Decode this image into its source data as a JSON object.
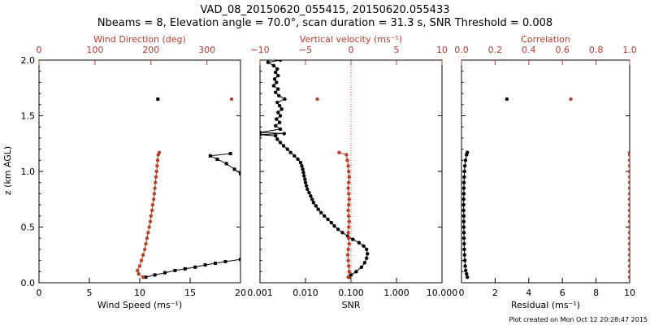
{
  "figure": {
    "title_line1": "VAD_08_20150620_055415, 20150620.055433",
    "title_line2": "Nbeams = 8, Elevation angle = 70.0°, scan duration = 31.3 s, SNR Threshold = 0.008",
    "footer": "Plot created on Mon Oct 12 20:28:47 2015",
    "colors": {
      "black": "#000000",
      "red": "#c0392b",
      "marker_red": "#b5432c"
    }
  },
  "chart_data": [
    {
      "id": "wind",
      "type": "scatter",
      "ylabel": "z (km AGL)",
      "ylim": [
        0,
        2
      ],
      "yticks": [
        "0.0",
        "0.5",
        "1.0",
        "1.5",
        "2.0"
      ],
      "bottom_axis": {
        "label": "Wind Speed (ms⁻¹)",
        "lim": [
          0,
          20
        ],
        "ticks": [
          "0",
          "5",
          "10",
          "15",
          "20"
        ]
      },
      "top_axis": {
        "label": "Wind Direction (deg)",
        "lim": [
          0,
          360
        ],
        "ticks": [
          "0",
          "100",
          "200",
          "300"
        ]
      },
      "series": [
        {
          "name": "Wind Speed",
          "color": "#000000",
          "marker": "square",
          "axis": "bottom",
          "segments": [
            [
              [
                10.6,
                0.05
              ],
              [
                11.5,
                0.07
              ],
              [
                12.5,
                0.09
              ],
              [
                13.5,
                0.11
              ],
              [
                14.5,
                0.125
              ],
              [
                15.5,
                0.14
              ],
              [
                16.5,
                0.16
              ],
              [
                17.5,
                0.175
              ],
              [
                18.5,
                0.19
              ],
              [
                20,
                0.21
              ]
            ],
            [
              [
                20,
                0.98
              ],
              [
                19.4,
                1.02
              ],
              [
                18.6,
                1.07
              ],
              [
                17.7,
                1.11
              ],
              [
                17.0,
                1.14
              ],
              [
                19.0,
                1.16
              ]
            ],
            [
              [
                11.8,
                1.65
              ]
            ]
          ]
        },
        {
          "name": "Wind Direction",
          "color": "#b5432c",
          "marker": "circle",
          "axis": "top",
          "segments": [
            [
              [
                186,
                0.05
              ],
              [
                178,
                0.08
              ],
              [
                176,
                0.11
              ],
              [
                180,
                0.15
              ],
              [
                183,
                0.2
              ],
              [
                186,
                0.25
              ],
              [
                189,
                0.3
              ],
              [
                191,
                0.35
              ],
              [
                193,
                0.4
              ],
              [
                195,
                0.45
              ],
              [
                197,
                0.5
              ],
              [
                199,
                0.55
              ],
              [
                200,
                0.6
              ],
              [
                202,
                0.65
              ],
              [
                203,
                0.7
              ],
              [
                205,
                0.75
              ],
              [
                206,
                0.8
              ],
              [
                207,
                0.85
              ],
              [
                208,
                0.9
              ],
              [
                209,
                0.95
              ],
              [
                210,
                1.0
              ],
              [
                211,
                1.05
              ],
              [
                212,
                1.1
              ],
              [
                213,
                1.15
              ],
              [
                215,
                1.17
              ]
            ],
            [
              [
                344,
                1.65
              ]
            ]
          ]
        }
      ]
    },
    {
      "id": "snr",
      "type": "line",
      "bottom_axis": {
        "label": "SNR",
        "scale": "log",
        "lim": [
          0.001,
          10
        ],
        "ticks": [
          "0.001",
          "0.010",
          "0.100",
          "1.000",
          "10.000"
        ]
      },
      "top_axis": {
        "label": "Vertical velocity (ms⁻¹)",
        "lim": [
          -10,
          10
        ],
        "ticks": [
          "−10",
          "−5",
          "0",
          "5",
          "10"
        ]
      },
      "reference_line": {
        "axis": "top",
        "value": 0,
        "style": "dotted",
        "color": "#c0392b"
      },
      "series": [
        {
          "name": "SNR",
          "color": "#000000",
          "marker": "circle",
          "axis": "bottom",
          "points": [
            [
              0.09,
              0.05
            ],
            [
              0.1,
              0.07
            ],
            [
              0.13,
              0.1
            ],
            [
              0.17,
              0.14
            ],
            [
              0.2,
              0.18
            ],
            [
              0.22,
              0.22
            ],
            [
              0.23,
              0.26
            ],
            [
              0.22,
              0.3
            ],
            [
              0.19,
              0.33
            ],
            [
              0.15,
              0.36
            ],
            [
              0.11,
              0.39
            ],
            [
              0.085,
              0.42
            ],
            [
              0.065,
              0.45
            ],
            [
              0.052,
              0.48
            ],
            [
              0.043,
              0.51
            ],
            [
              0.037,
              0.54
            ],
            [
              0.031,
              0.57
            ],
            [
              0.026,
              0.6
            ],
            [
              0.022,
              0.63
            ],
            [
              0.019,
              0.66
            ],
            [
              0.017,
              0.69
            ],
            [
              0.015,
              0.72
            ],
            [
              0.014,
              0.75
            ],
            [
              0.013,
              0.78
            ],
            [
              0.012,
              0.81
            ],
            [
              0.011,
              0.84
            ],
            [
              0.0105,
              0.87
            ],
            [
              0.01,
              0.9
            ],
            [
              0.0097,
              0.93
            ],
            [
              0.0093,
              0.96
            ],
            [
              0.009,
              0.99
            ],
            [
              0.0087,
              1.02
            ],
            [
              0.0083,
              1.05
            ],
            [
              0.0078,
              1.08
            ],
            [
              0.0068,
              1.11
            ],
            [
              0.0057,
              1.14
            ],
            [
              0.0047,
              1.17
            ],
            [
              0.004,
              1.2
            ],
            [
              0.0033,
              1.23
            ],
            [
              0.0028,
              1.26
            ],
            [
              0.0024,
              1.29
            ],
            [
              0.0022,
              1.32
            ],
            [
              0.001,
              1.33
            ],
            [
              0.0034,
              1.34
            ],
            [
              0.001,
              1.35
            ],
            [
              0.0028,
              1.38
            ],
            [
              0.0022,
              1.41
            ],
            [
              0.0027,
              1.44
            ],
            [
              0.0023,
              1.47
            ],
            [
              0.0028,
              1.5
            ],
            [
              0.0025,
              1.53
            ],
            [
              0.003,
              1.56
            ],
            [
              0.0027,
              1.59
            ],
            [
              0.0024,
              1.62
            ],
            [
              0.0035,
              1.65
            ],
            [
              0.0026,
              1.68
            ],
            [
              0.0022,
              1.71
            ],
            [
              0.0025,
              1.74
            ],
            [
              0.002,
              1.77
            ],
            [
              0.0023,
              1.8
            ],
            [
              0.0021,
              1.83
            ],
            [
              0.0025,
              1.86
            ],
            [
              0.0022,
              1.89
            ],
            [
              0.0024,
              1.92
            ],
            [
              0.002,
              1.95
            ],
            [
              0.0015,
              1.98
            ],
            [
              0.0028,
              2.0
            ]
          ]
        },
        {
          "name": "Vertical velocity",
          "color": "#b5432c",
          "marker": "circle",
          "axis": "top",
          "segments": [
            [
              [
                -0.3,
                0.05
              ],
              [
                -0.2,
                0.1
              ],
              [
                -0.25,
                0.15
              ],
              [
                -0.3,
                0.2
              ],
              [
                -0.35,
                0.25
              ],
              [
                -0.3,
                0.3
              ],
              [
                -0.2,
                0.35
              ],
              [
                -0.25,
                0.4
              ],
              [
                -0.3,
                0.45
              ],
              [
                -0.25,
                0.5
              ],
              [
                -0.2,
                0.55
              ],
              [
                -0.25,
                0.6
              ],
              [
                -0.3,
                0.65
              ],
              [
                -0.25,
                0.7
              ],
              [
                -0.2,
                0.75
              ],
              [
                -0.25,
                0.8
              ],
              [
                -0.3,
                0.85
              ],
              [
                -0.25,
                0.9
              ],
              [
                -0.2,
                0.95
              ],
              [
                -0.25,
                1.0
              ],
              [
                -0.3,
                1.05
              ],
              [
                -0.4,
                1.1
              ],
              [
                -0.5,
                1.15
              ],
              [
                -1.3,
                1.17
              ]
            ],
            [
              [
                -3.7,
                1.65
              ]
            ]
          ]
        }
      ]
    },
    {
      "id": "resid",
      "type": "scatter",
      "bottom_axis": {
        "label": "Residual (ms⁻¹)",
        "lim": [
          0,
          10
        ],
        "ticks": [
          "0",
          "2",
          "4",
          "6",
          "8",
          "10"
        ]
      },
      "top_axis": {
        "label": "Correlation",
        "lim": [
          0,
          1
        ],
        "ticks": [
          "0.0",
          "0.2",
          "0.4",
          "0.6",
          "0.8",
          "1.0"
        ]
      },
      "series": [
        {
          "name": "Residual",
          "color": "#000000",
          "marker": "circle",
          "axis": "bottom",
          "segments": [
            [
              [
                0.35,
                0.05
              ],
              [
                0.3,
                0.08
              ],
              [
                0.25,
                0.11
              ],
              [
                0.22,
                0.15
              ],
              [
                0.2,
                0.2
              ],
              [
                0.18,
                0.25
              ],
              [
                0.17,
                0.3
              ],
              [
                0.16,
                0.35
              ],
              [
                0.15,
                0.4
              ],
              [
                0.15,
                0.45
              ],
              [
                0.14,
                0.5
              ],
              [
                0.14,
                0.55
              ],
              [
                0.14,
                0.6
              ],
              [
                0.13,
                0.65
              ],
              [
                0.13,
                0.7
              ],
              [
                0.13,
                0.75
              ],
              [
                0.14,
                0.8
              ],
              [
                0.14,
                0.85
              ],
              [
                0.15,
                0.9
              ],
              [
                0.16,
                0.95
              ],
              [
                0.18,
                1.0
              ],
              [
                0.2,
                1.05
              ],
              [
                0.24,
                1.1
              ],
              [
                0.3,
                1.15
              ],
              [
                0.35,
                1.17
              ]
            ],
            [
              [
                2.7,
                1.65
              ]
            ]
          ]
        },
        {
          "name": "Correlation",
          "color": "#b5432c",
          "marker": "circle",
          "axis": "top",
          "segments": [
            [
              [
                1.0,
                0.05
              ],
              [
                1.0,
                0.1
              ],
              [
                1.0,
                0.15
              ],
              [
                1.0,
                0.2
              ],
              [
                1.0,
                0.25
              ],
              [
                1.0,
                0.3
              ],
              [
                1.0,
                0.35
              ],
              [
                1.0,
                0.4
              ],
              [
                1.0,
                0.45
              ],
              [
                1.0,
                0.5
              ],
              [
                1.0,
                0.55
              ],
              [
                1.0,
                0.6
              ],
              [
                1.0,
                0.65
              ],
              [
                1.0,
                0.7
              ],
              [
                1.0,
                0.75
              ],
              [
                1.0,
                0.8
              ],
              [
                1.0,
                0.85
              ],
              [
                1.0,
                0.9
              ],
              [
                1.0,
                0.95
              ],
              [
                1.0,
                1.0
              ],
              [
                1.0,
                1.05
              ],
              [
                1.0,
                1.1
              ],
              [
                1.0,
                1.15
              ],
              [
                1.0,
                1.17
              ]
            ],
            [
              [
                0.65,
                1.65
              ]
            ]
          ]
        }
      ]
    }
  ]
}
